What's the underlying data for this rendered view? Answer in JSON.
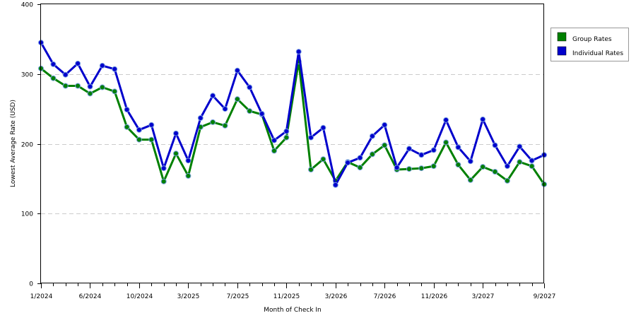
{
  "chart_data": {
    "type": "line",
    "title": "",
    "xlabel": "Month of Check In",
    "ylabel": "Lowest Average Rate (USD)",
    "ylim": [
      0,
      400
    ],
    "yticks": [
      0,
      100,
      200,
      300,
      400
    ],
    "grid": "horizontal dashed",
    "legend_position": "right",
    "x_tick_labels": [
      "1/2024",
      "6/2024",
      "10/2024",
      "3/2025",
      "7/2025",
      "11/2025",
      "3/2026",
      "7/2026",
      "11/2026",
      "3/2027",
      "9/2027"
    ],
    "x_tick_months": [
      0,
      4,
      8,
      12,
      16,
      20,
      24,
      28,
      32,
      36,
      41
    ],
    "months": 42,
    "series": [
      {
        "name": "Group Rates",
        "color": "#008000",
        "values": [
          308,
          294,
          283,
          283,
          272,
          281,
          275,
          224,
          206,
          206,
          146,
          186,
          154,
          224,
          231,
          226,
          264,
          247,
          242,
          190,
          209,
          318,
          163,
          178,
          147,
          174,
          166,
          185,
          198,
          163,
          164,
          165,
          168,
          202,
          170,
          148,
          167,
          160,
          147,
          174,
          168,
          142
        ]
      },
      {
        "name": "Individual Rates",
        "color": "#0000cc",
        "values": [
          345,
          314,
          299,
          315,
          282,
          312,
          307,
          249,
          220,
          227,
          165,
          215,
          176,
          237,
          269,
          250,
          305,
          281,
          243,
          205,
          218,
          332,
          209,
          223,
          141,
          173,
          180,
          211,
          227,
          166,
          193,
          184,
          191,
          234,
          195,
          175,
          235,
          198,
          168,
          196,
          176,
          184
        ]
      }
    ]
  }
}
